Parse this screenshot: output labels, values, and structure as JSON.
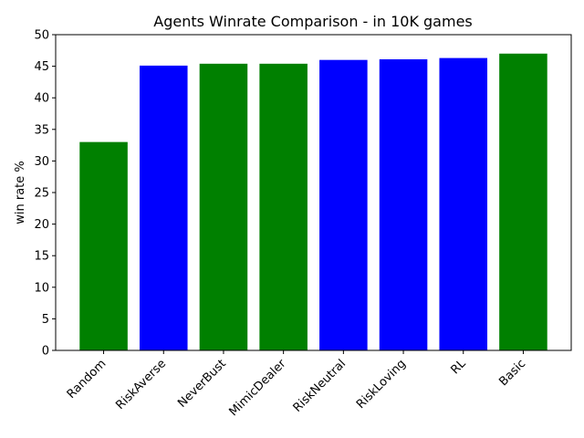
{
  "chart_data": {
    "type": "bar",
    "title": "Agents Winrate Comparison - in 10K games",
    "xlabel": "",
    "ylabel": "win rate %",
    "categories": [
      "Random",
      "RiskAverse",
      "NeverBust",
      "MimicDealer",
      "RiskNeutral",
      "RiskLoving",
      "RL",
      "Basic"
    ],
    "values": [
      33.0,
      45.1,
      45.4,
      45.4,
      46.0,
      46.1,
      46.3,
      47.0
    ],
    "bar_colors": [
      "#008000",
      "#0000ff",
      "#008000",
      "#008000",
      "#0000ff",
      "#0000ff",
      "#0000ff",
      "#008000"
    ],
    "ylim": [
      0,
      50
    ],
    "yticks": [
      "0",
      "5",
      "10",
      "15",
      "20",
      "25",
      "30",
      "35",
      "40",
      "45",
      "50"
    ],
    "grid": false,
    "legend": "none"
  }
}
